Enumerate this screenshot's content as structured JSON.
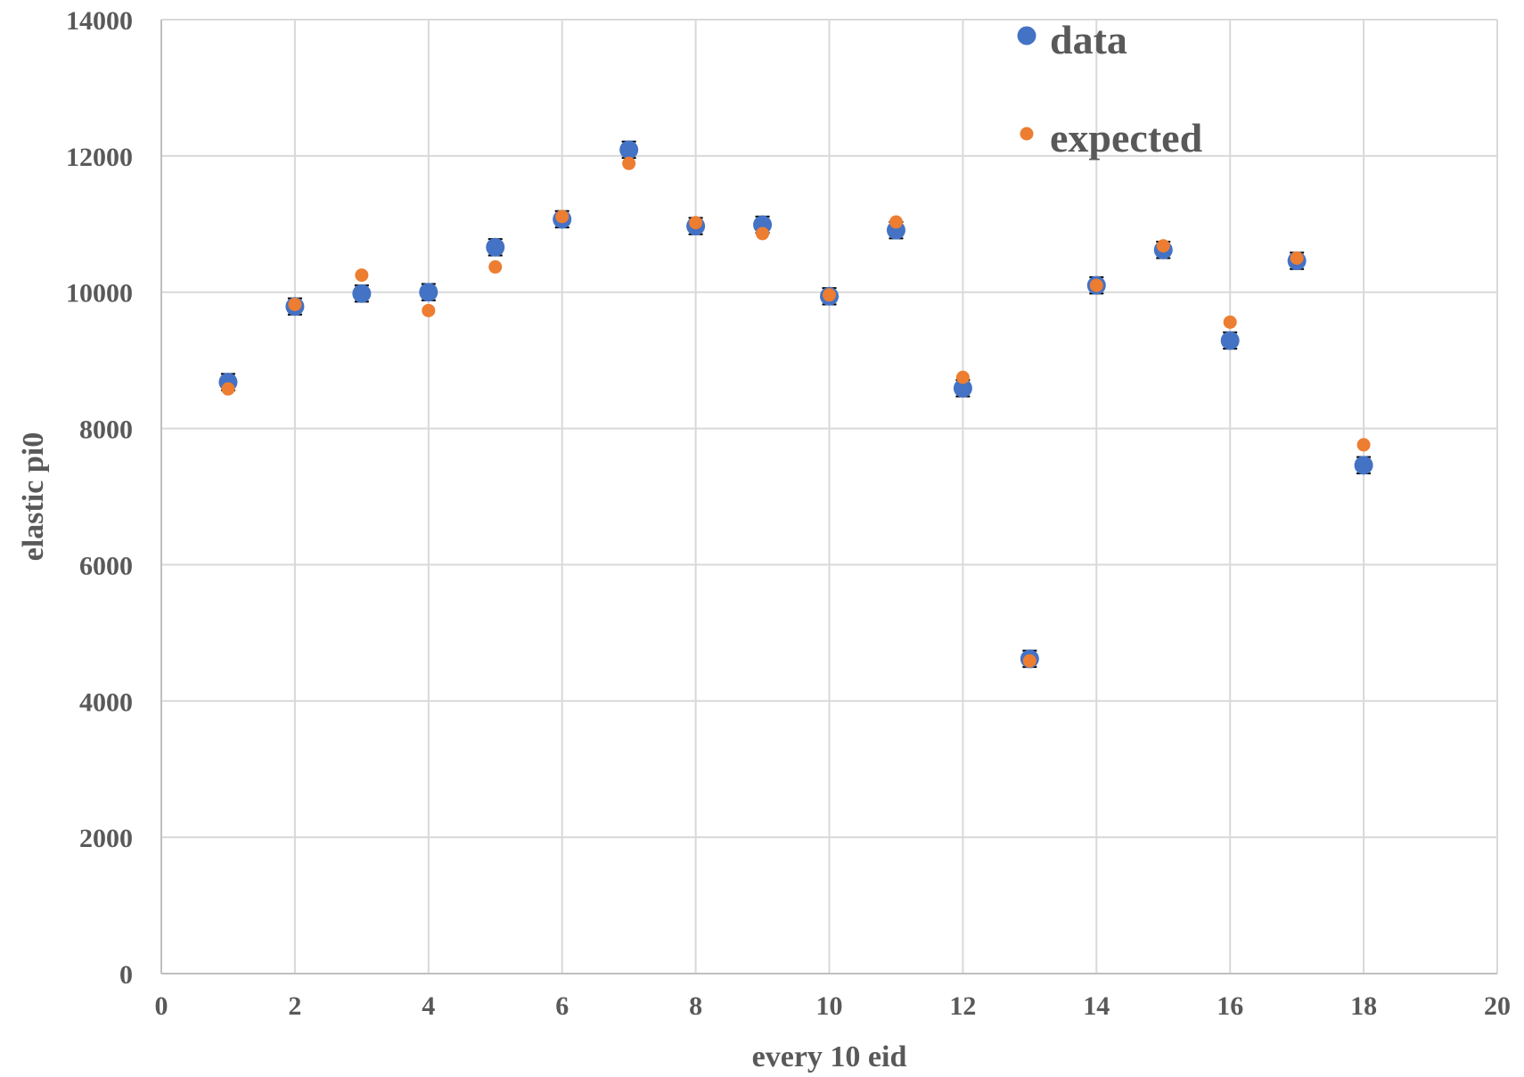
{
  "chart_data": {
    "type": "scatter",
    "title": "",
    "xlabel": "every 10 eid",
    "ylabel": "elastic pi0",
    "xlim": [
      0,
      20
    ],
    "ylim": [
      0,
      14000
    ],
    "x_ticks": [
      0,
      2,
      4,
      6,
      8,
      10,
      12,
      14,
      16,
      18,
      20
    ],
    "y_ticks": [
      0,
      2000,
      4000,
      6000,
      8000,
      10000,
      12000,
      14000
    ],
    "grid": true,
    "legend_position": "top-right",
    "series": [
      {
        "name": "data",
        "color": "#4472c4",
        "marker": "large-circle",
        "error_bars": true,
        "error": 120,
        "x": [
          1,
          2,
          3,
          4,
          5,
          6,
          7,
          8,
          9,
          10,
          11,
          12,
          13,
          14,
          15,
          16,
          17,
          18
        ],
        "y": [
          8680,
          9790,
          9980,
          10000,
          10660,
          11070,
          12090,
          10970,
          10990,
          9940,
          10910,
          8590,
          4620,
          10100,
          10620,
          9290,
          10460,
          7460
        ]
      },
      {
        "name": "expected",
        "color": "#ed7d31",
        "marker": "small-circle",
        "error_bars": false,
        "x": [
          1,
          2,
          3,
          4,
          5,
          6,
          7,
          8,
          9,
          10,
          11,
          12,
          13,
          14,
          15,
          16,
          17,
          18
        ],
        "y": [
          8580,
          9820,
          10250,
          9730,
          10370,
          11110,
          11890,
          11020,
          10860,
          9960,
          11030,
          8750,
          4590,
          10100,
          10680,
          9560,
          10500,
          7760
        ]
      }
    ]
  }
}
